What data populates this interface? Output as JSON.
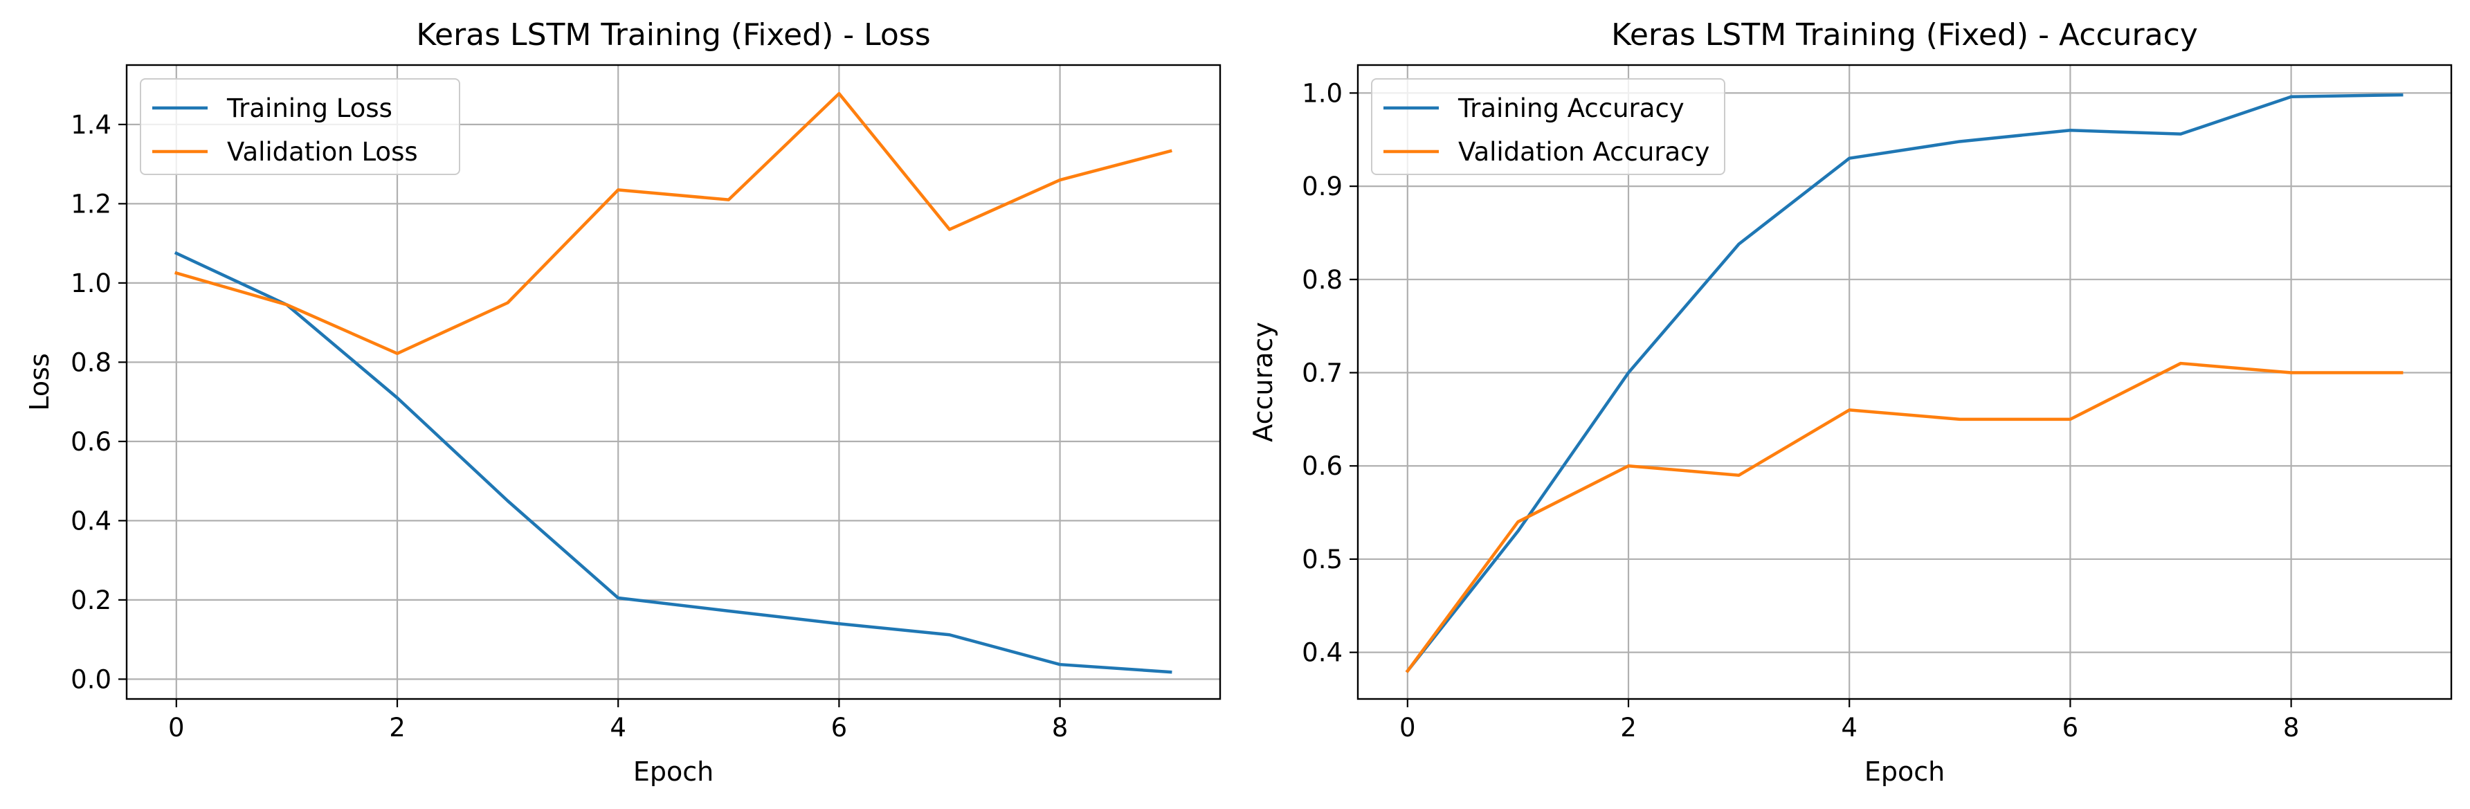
{
  "chart_data": [
    {
      "type": "line",
      "title": "Keras LSTM Training (Fixed) - Loss",
      "xlabel": "Epoch",
      "ylabel": "Loss",
      "xlim": [
        -0.45,
        9.45
      ],
      "ylim": [
        -0.05,
        1.55
      ],
      "x_ticks": [
        0,
        2,
        4,
        6,
        8
      ],
      "y_ticks": [
        0.0,
        0.2,
        0.4,
        0.6,
        0.8,
        1.0,
        1.2,
        1.4
      ],
      "y_tick_labels": [
        "0.0",
        "0.2",
        "0.4",
        "0.6",
        "0.8",
        "1.0",
        "1.2",
        "1.4"
      ],
      "grid": true,
      "legend_position": "upper-left",
      "x": [
        0,
        1,
        2,
        3,
        4,
        5,
        6,
        7,
        8,
        9
      ],
      "series": [
        {
          "name": "Training Loss",
          "color": "#1f77b4",
          "values": [
            1.075,
            0.945,
            0.71,
            0.45,
            0.205,
            0.172,
            0.14,
            0.112,
            0.037,
            0.018
          ]
        },
        {
          "name": "Validation Loss",
          "color": "#ff7f0e",
          "values": [
            1.025,
            0.945,
            0.822,
            0.95,
            1.235,
            1.21,
            1.478,
            1.135,
            1.26,
            1.333
          ]
        }
      ]
    },
    {
      "type": "line",
      "title": "Keras LSTM Training (Fixed) - Accuracy",
      "xlabel": "Epoch",
      "ylabel": "Accuracy",
      "xlim": [
        -0.45,
        9.45
      ],
      "ylim": [
        0.35,
        1.03
      ],
      "x_ticks": [
        0,
        2,
        4,
        6,
        8
      ],
      "y_ticks": [
        0.4,
        0.5,
        0.6,
        0.7,
        0.8,
        0.9,
        1.0
      ],
      "y_tick_labels": [
        "0.4",
        "0.5",
        "0.6",
        "0.7",
        "0.8",
        "0.9",
        "1.0"
      ],
      "grid": true,
      "legend_position": "upper-left",
      "x": [
        0,
        1,
        2,
        3,
        4,
        5,
        6,
        7,
        8,
        9
      ],
      "series": [
        {
          "name": "Training Accuracy",
          "color": "#1f77b4",
          "values": [
            0.38,
            0.53,
            0.7,
            0.838,
            0.93,
            0.948,
            0.96,
            0.956,
            0.996,
            0.998
          ]
        },
        {
          "name": "Validation Accuracy",
          "color": "#ff7f0e",
          "values": [
            0.38,
            0.54,
            0.6,
            0.59,
            0.66,
            0.65,
            0.65,
            0.71,
            0.7,
            0.7
          ]
        }
      ]
    }
  ]
}
